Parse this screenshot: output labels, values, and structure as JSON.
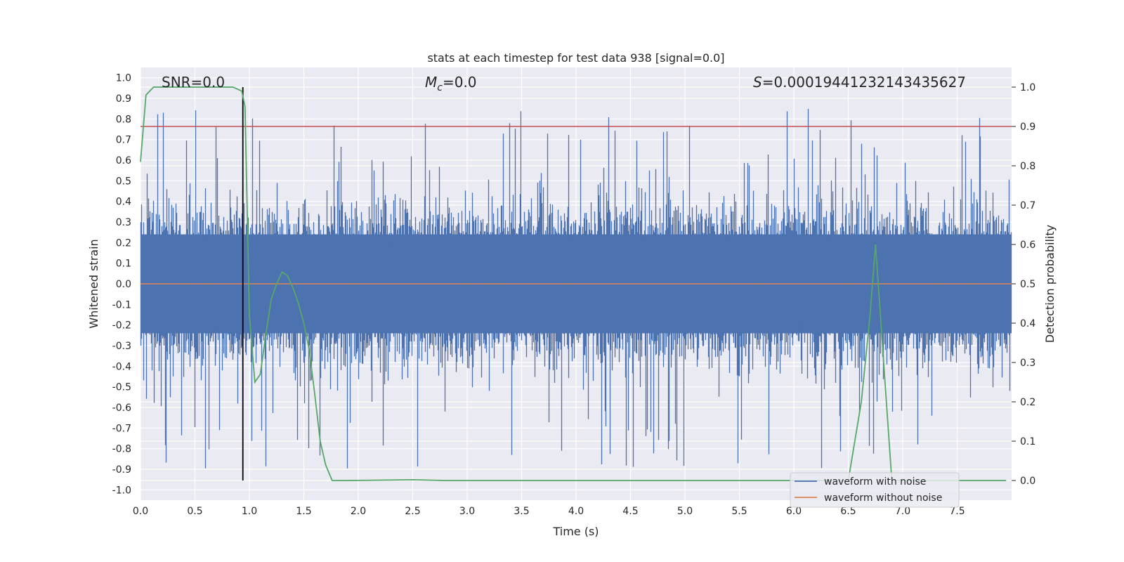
{
  "chart_data": {
    "type": "line",
    "title": "stats at each timestep for test data 938 [signal=0.0]",
    "xlabel": "Time (s)",
    "ylabel": "Whitened strain",
    "ylabel_right": "Detection probability",
    "xlim": [
      0.0,
      8.0
    ],
    "ylim": [
      -1.05,
      1.05
    ],
    "ylim_right": [
      -0.05,
      1.05
    ],
    "x_ticks": [
      "0.0",
      "0.5",
      "1.0",
      "1.5",
      "2.0",
      "2.5",
      "3.0",
      "3.5",
      "4.0",
      "4.5",
      "5.0",
      "5.5",
      "6.0",
      "6.5",
      "7.0",
      "7.5"
    ],
    "y_ticks": [
      "1.0",
      "0.9",
      "0.8",
      "0.7",
      "0.6",
      "0.5",
      "0.4",
      "0.3",
      "0.2",
      "0.1",
      "0.0",
      "-0.1",
      "-0.2",
      "-0.3",
      "-0.4",
      "-0.5",
      "-0.6",
      "-0.7",
      "-0.8",
      "-0.9",
      "-1.0"
    ],
    "y_ticks_right": [
      "1.0",
      "0.9",
      "0.8",
      "0.7",
      "0.6",
      "0.5",
      "0.4",
      "0.3",
      "0.2",
      "0.1",
      "0.0"
    ],
    "annotations": {
      "snr": "SNR=0.0",
      "mc_symbol": "M",
      "mc_subscript": "c",
      "mc_value": "=0.0",
      "s_symbol": "S",
      "s_value": "=0.00019441232143435627"
    },
    "threshold_right": 0.9,
    "marker_time": 0.94,
    "series": [
      {
        "name": "waveform with noise",
        "color": "#4c72b0",
        "axis": "left",
        "kind": "noise"
      },
      {
        "name": "waveform without noise",
        "color": "#dd8452",
        "axis": "left",
        "values_constant": 0.0
      },
      {
        "name": "Detection probability",
        "color": "#55a868",
        "axis": "right",
        "x": [
          0.0,
          0.05,
          0.12,
          0.2,
          0.5,
          0.85,
          0.93,
          0.96,
          1.0,
          1.05,
          1.1,
          1.15,
          1.2,
          1.25,
          1.3,
          1.35,
          1.4,
          1.45,
          1.5,
          1.55,
          1.6,
          1.65,
          1.7,
          1.76,
          1.9,
          2.5,
          2.8,
          3.0,
          4.0,
          5.0,
          6.0,
          6.5,
          6.62,
          6.7,
          6.75,
          6.8,
          6.9,
          7.0,
          7.5,
          7.95
        ],
        "values": [
          0.81,
          0.98,
          1.0,
          1.0,
          1.0,
          1.0,
          0.99,
          0.95,
          0.42,
          0.25,
          0.27,
          0.37,
          0.46,
          0.5,
          0.53,
          0.52,
          0.49,
          0.45,
          0.4,
          0.33,
          0.22,
          0.1,
          0.04,
          0.0,
          0.0,
          0.002,
          0.0,
          0.0,
          0.0,
          0.0,
          0.0,
          0.0,
          0.2,
          0.42,
          0.6,
          0.4,
          0.0,
          0.0,
          0.0,
          0.0
        ]
      }
    ],
    "legend": {
      "placement": "lower-right",
      "entries": [
        "waveform with noise",
        "waveform without noise"
      ]
    },
    "colors": {
      "background": "#eaeaf2",
      "grid": "#ffffff",
      "threshold": "#c44e52",
      "marker": "#000000",
      "text": "#262626"
    }
  }
}
